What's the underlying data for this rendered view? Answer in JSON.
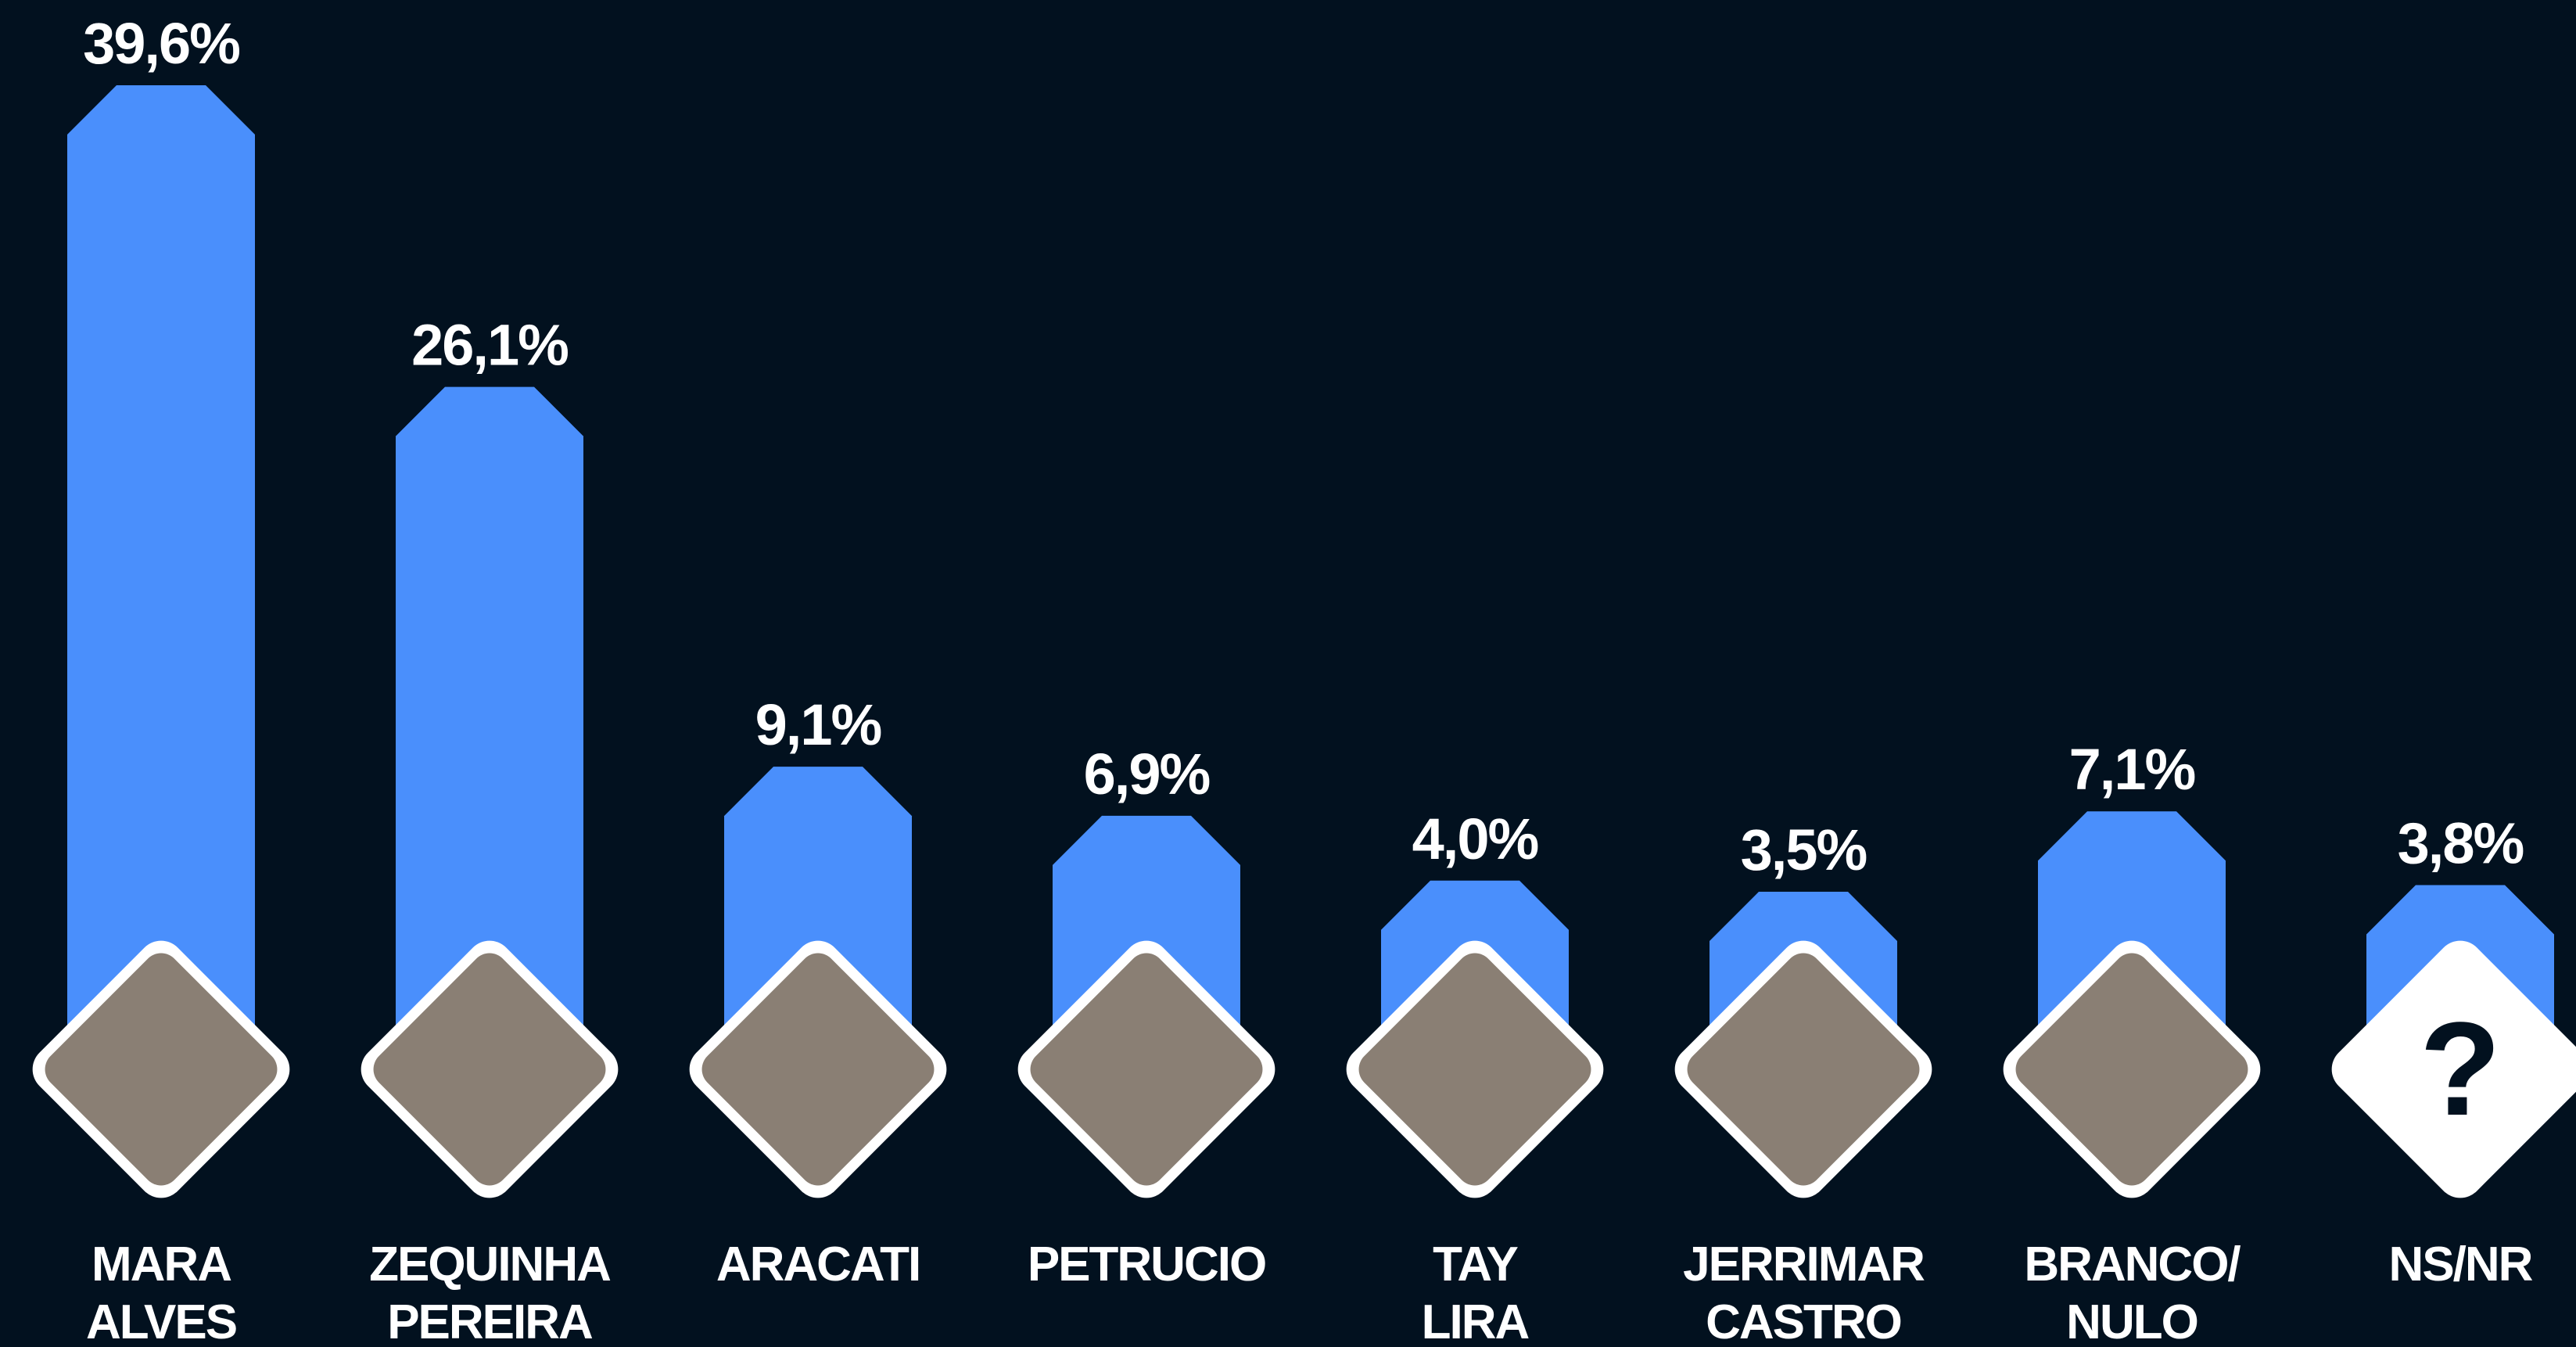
{
  "chart_data": {
    "type": "bar",
    "categories": [
      "MARA\nALVES",
      "ZEQUINHA\nPEREIRA",
      "ARACATI",
      "PETRUCIO",
      "TAY\nLIRA",
      "JERRIMAR\nCASTRO",
      "BRANCO/\nNULO",
      "NS/NR"
    ],
    "values": [
      39.6,
      26.1,
      9.1,
      6.9,
      4.0,
      3.5,
      7.1,
      3.8
    ],
    "value_labels": [
      "39,6%",
      "26,1%",
      "9,1%",
      "6,9%",
      "4,0%",
      "3,5%",
      "7,1%",
      "3,8%"
    ],
    "color": "#4a8ffc",
    "unknown_icon": "?"
  }
}
